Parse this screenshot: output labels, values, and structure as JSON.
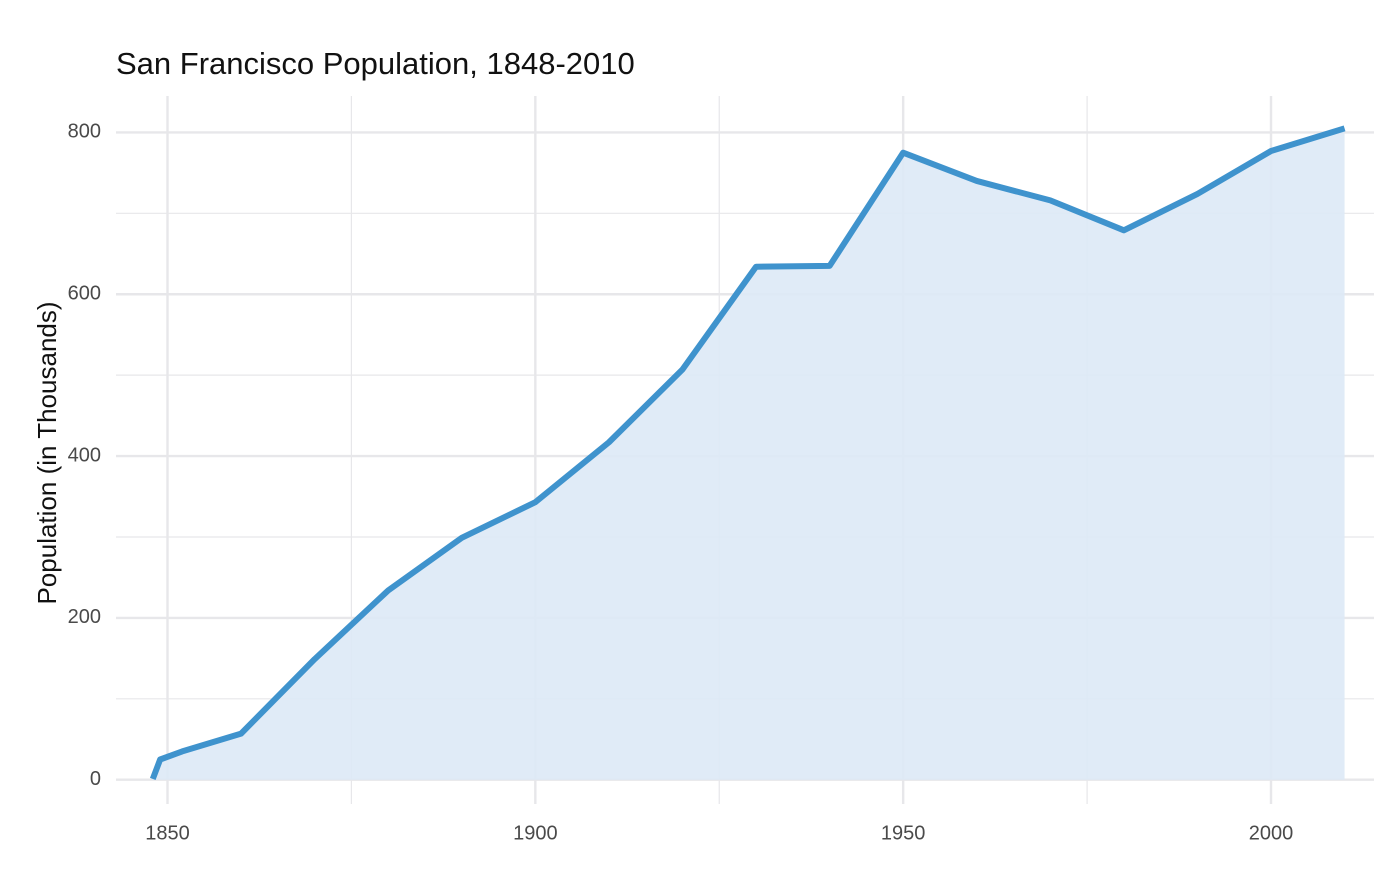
{
  "chart_data": {
    "type": "area",
    "title": "San Francisco Population, 1848-2010",
    "xlabel": "",
    "ylabel": "Population (in Thousands)",
    "x": [
      1848,
      1849,
      1852,
      1860,
      1870,
      1880,
      1890,
      1900,
      1910,
      1920,
      1930,
      1940,
      1950,
      1960,
      1970,
      1980,
      1990,
      2000,
      2010
    ],
    "series": [
      {
        "values": [
          1,
          25,
          35,
          57,
          149,
          234,
          299,
          343,
          417,
          507,
          634,
          635,
          775,
          740,
          716,
          679,
          724,
          777,
          805
        ]
      }
    ],
    "xlim": [
      1843,
      2014
    ],
    "ylim": [
      -30,
      845
    ],
    "x_ticks": [
      1850,
      1900,
      1950,
      2000
    ],
    "x_tick_labels": [
      "1850",
      "1900",
      "1950",
      "2000"
    ],
    "y_ticks": [
      0,
      200,
      400,
      600,
      800
    ],
    "y_tick_labels": [
      "0",
      "200",
      "400",
      "600",
      "800"
    ],
    "x_minor_ticks": [
      1875,
      1925,
      1975
    ],
    "y_minor_ticks": [
      100,
      300,
      500,
      700
    ],
    "grid": true,
    "legend": "none",
    "colors": {
      "line": "#3f93cd",
      "area": "#dde9f6",
      "grid": "#e7e7ea"
    }
  }
}
